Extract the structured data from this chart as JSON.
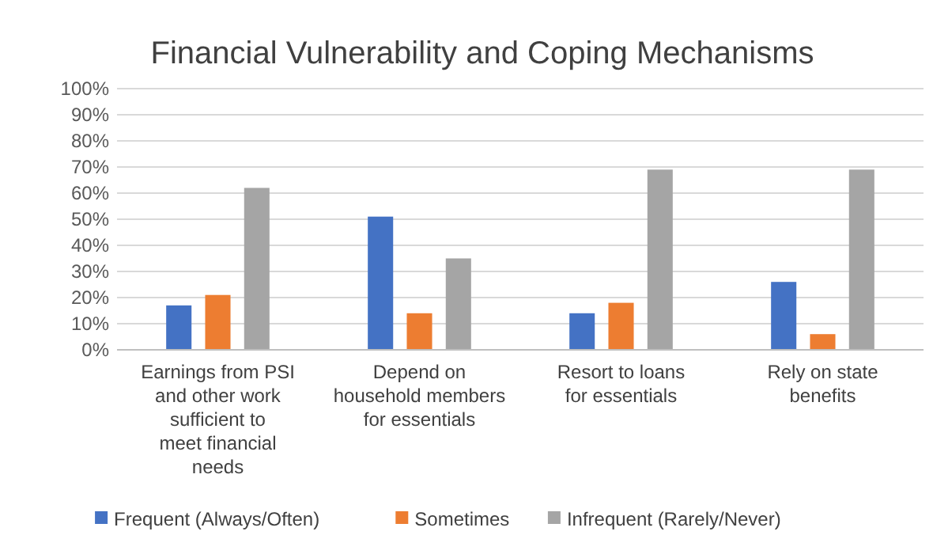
{
  "chart_data": {
    "type": "bar",
    "title": "Financial Vulnerability and Coping Mechanisms",
    "categories": [
      "Earnings from PSI and other work sufficient to meet financial needs",
      "Depend on household members for essentials",
      "Resort to loans for essentials",
      "Rely on state benefits"
    ],
    "series": [
      {
        "name": "Frequent (Always/Often)",
        "color": "#4472c4",
        "values": [
          0.17,
          0.51,
          0.14,
          0.26
        ]
      },
      {
        "name": "Sometimes",
        "color": "#ed7d31",
        "values": [
          0.21,
          0.14,
          0.18,
          0.06
        ]
      },
      {
        "name": "Infrequent (Rarely/Never)",
        "color": "#a5a5a5",
        "values": [
          0.62,
          0.35,
          0.69,
          0.69
        ]
      }
    ],
    "ylim": [
      0,
      1
    ],
    "yticks": [
      {
        "value": 0,
        "label": "0%"
      },
      {
        "value": 0.1,
        "label": "10%"
      },
      {
        "value": 0.2,
        "label": "20%"
      },
      {
        "value": 0.3,
        "label": "30%"
      },
      {
        "value": 0.4,
        "label": "40%"
      },
      {
        "value": 0.5,
        "label": "50%"
      },
      {
        "value": 0.6,
        "label": "60%"
      },
      {
        "value": 0.7,
        "label": "70%"
      },
      {
        "value": 0.8,
        "label": "80%"
      },
      {
        "value": 0.9,
        "label": "90%"
      },
      {
        "value": 1,
        "label": "100%"
      }
    ],
    "grid": "y",
    "legend": "bottom"
  }
}
